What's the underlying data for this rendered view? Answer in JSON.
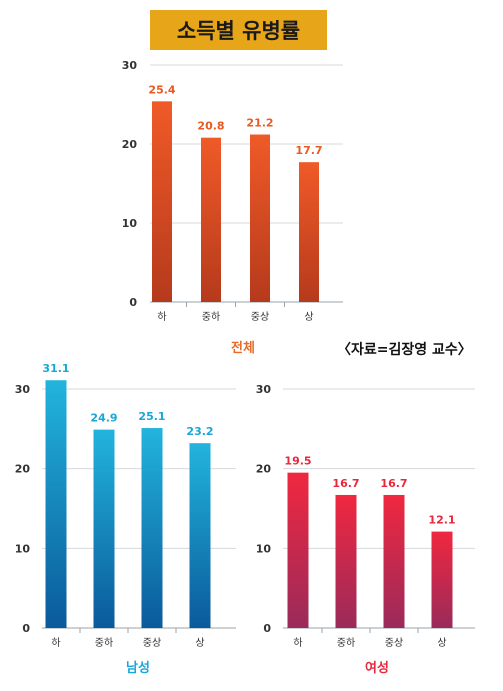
{
  "header": {
    "title": "소득별 유병률",
    "source": "〈자료=김장영 교수〉"
  },
  "colors": {
    "title_bg": "#e7a51a"
  },
  "chart_data": [
    {
      "type": "bar",
      "title": "전체",
      "categories": [
        "하",
        "중하",
        "중상",
        "상"
      ],
      "values": [
        25.4,
        20.8,
        21.2,
        17.7
      ],
      "value_labels": [
        "25.4",
        "20.8",
        "21.2",
        "17.7"
      ],
      "yticks": [
        "0",
        "10",
        "20",
        "30"
      ],
      "ylim": [
        0,
        30
      ],
      "grid": true,
      "colors": {
        "top": "#f05a28",
        "bottom": "#b53a1c",
        "label": "#e85a22",
        "title": "#e86a2a"
      }
    },
    {
      "type": "bar",
      "title": "남성",
      "categories": [
        "하",
        "중하",
        "중상",
        "상"
      ],
      "values": [
        31.1,
        24.9,
        25.1,
        23.2
      ],
      "value_labels": [
        "31.1",
        "24.9",
        "25.1",
        "23.2"
      ],
      "yticks": [
        "0",
        "10",
        "20",
        "30"
      ],
      "ylim": [
        0,
        30
      ],
      "grid": true,
      "colors": {
        "top": "#22b4dc",
        "bottom": "#0a5a9a",
        "label": "#1aa6d6",
        "title": "#1aa6d6"
      }
    },
    {
      "type": "bar",
      "title": "여성",
      "categories": [
        "하",
        "중하",
        "중상",
        "상"
      ],
      "values": [
        19.5,
        16.7,
        16.7,
        12.1
      ],
      "value_labels": [
        "19.5",
        "16.7",
        "16.7",
        "12.1"
      ],
      "yticks": [
        "0",
        "10",
        "20",
        "30"
      ],
      "ylim": [
        0,
        30
      ],
      "grid": true,
      "colors": {
        "top": "#f02840",
        "bottom": "#9a2a5a",
        "label": "#e8283c",
        "title": "#e8283c"
      }
    }
  ]
}
